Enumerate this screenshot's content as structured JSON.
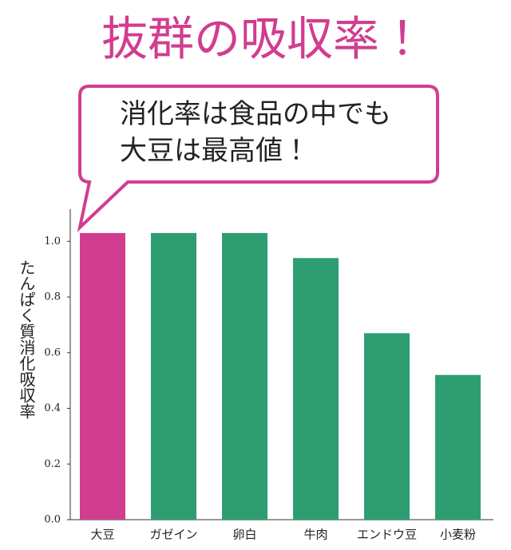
{
  "chart_data": {
    "type": "bar",
    "title": "抜群の吸収率！",
    "annotations": [
      "消化率は食品の中でも",
      "大豆は最高値！"
    ],
    "y_label": "たんぱく質消化吸収率",
    "categories": [
      "大豆",
      "ガゼイン",
      "卵白",
      "牛肉",
      "エンドウ豆",
      "小麦粉"
    ],
    "values": [
      1.03,
      1.03,
      1.03,
      0.94,
      0.67,
      0.52
    ],
    "colors": [
      "#d13d8f",
      "#2e9e72",
      "#2e9e72",
      "#2e9e72",
      "#2e9e72",
      "#2e9e72"
    ],
    "ylim": [
      0,
      1.11
    ],
    "yticks": [
      {
        "value": 0,
        "label": "0.0"
      },
      0.2,
      0.4,
      0.6,
      0.8,
      {
        "value": 1,
        "label": "1.0"
      }
    ],
    "grid": false
  }
}
